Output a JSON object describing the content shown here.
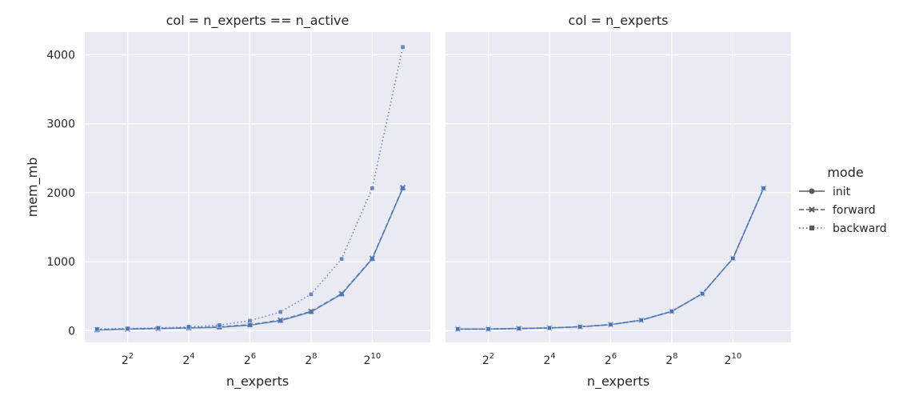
{
  "chart_data": {
    "type": "line",
    "xscale": "log2",
    "x": [
      2,
      4,
      8,
      16,
      32,
      64,
      128,
      256,
      512,
      1024,
      2048
    ],
    "ylabel": "mem_mb",
    "yticks": [
      0,
      1000,
      2000,
      3000,
      4000
    ],
    "xticks": [
      4,
      16,
      64,
      256,
      1024
    ],
    "xtick_exponents": [
      "2",
      "4",
      "6",
      "8",
      "10"
    ],
    "xtick_base": "2",
    "ylim": [
      -170,
      4330
    ],
    "xlim_log2": [
      0.6,
      11.9
    ],
    "grid": true,
    "legend": {
      "title": "mode",
      "placement": "right",
      "entries": [
        "init",
        "forward",
        "backward"
      ]
    },
    "series_styles": {
      "init": {
        "dash": "",
        "marker": "circle"
      },
      "forward": {
        "dash": "6,3",
        "marker": "x"
      },
      "backward": {
        "dash": "1.5,3",
        "marker": "square"
      }
    },
    "color": "#4c72b0",
    "panels": [
      {
        "title": "col = n_experts == n_active",
        "xlabel": "n_experts",
        "series": [
          {
            "name": "init",
            "values": [
              8,
              24,
              32,
              40,
              48,
              80,
              144,
              272,
              528,
              1040,
              2064
            ]
          },
          {
            "name": "forward",
            "values": [
              16,
              24,
              32,
              40,
              56,
              88,
              152,
              280,
              536,
              1048,
              2072
            ]
          },
          {
            "name": "backward",
            "values": [
              24,
              32,
              40,
              56,
              80,
              144,
              272,
              528,
              1040,
              2064,
              4112
            ]
          }
        ]
      },
      {
        "title": "col = n_experts",
        "xlabel": "n_experts",
        "series": [
          {
            "name": "init",
            "values": [
              24,
              24,
              32,
              40,
              56,
              88,
              152,
              280,
              536,
              1048,
              2064
            ]
          },
          {
            "name": "forward",
            "values": [
              24,
              24,
              32,
              40,
              56,
              88,
              152,
              280,
              536,
              1048,
              2064
            ]
          },
          {
            "name": "backward",
            "values": [
              24,
              24,
              32,
              40,
              56,
              88,
              152,
              280,
              536,
              1048,
              2064
            ]
          }
        ]
      }
    ]
  }
}
